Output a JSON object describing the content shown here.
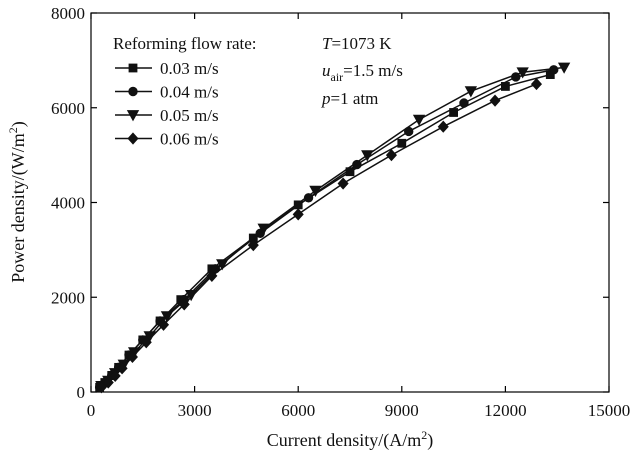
{
  "chart_data": {
    "type": "line",
    "title": "",
    "xlabel": "Current density/(A/m²)",
    "xlabel_parts": {
      "main": "Current density/(A/m",
      "sup": "2",
      "close": ")"
    },
    "ylabel": "Power density/(W/m²)",
    "ylabel_parts": {
      "main": "Power density/(W/m",
      "sup": "2",
      "close": ")"
    },
    "xlim": [
      0,
      15000
    ],
    "ylim": [
      0,
      8000
    ],
    "xticks": [
      0,
      3000,
      6000,
      9000,
      12000,
      15000
    ],
    "yticks": [
      0,
      2000,
      4000,
      6000,
      8000
    ],
    "xtick_labels": [
      "0",
      "3000",
      "6000",
      "9000",
      "12000",
      "15000"
    ],
    "ytick_labels": [
      "0",
      "2000",
      "4000",
      "6000",
      "8000"
    ],
    "grid": false,
    "legend": {
      "title": "Reforming flow rate:",
      "placement": "top-left"
    },
    "series": [
      {
        "name": "0.03 m/s",
        "marker": "square",
        "x": [
          250,
          400,
          600,
          800,
          1100,
          1500,
          2000,
          2600,
          3500,
          4700,
          6000,
          7500,
          9000,
          10500,
          12000,
          13300
        ],
        "y": [
          100,
          200,
          350,
          520,
          780,
          1100,
          1500,
          1950,
          2600,
          3250,
          3950,
          4650,
          5250,
          5900,
          6450,
          6700
        ]
      },
      {
        "name": "0.04 m/s",
        "marker": "circle",
        "x": [
          250,
          400,
          600,
          800,
          1100,
          1500,
          2000,
          2700,
          3600,
          4900,
          6300,
          7700,
          9200,
          10800,
          12300,
          13400
        ],
        "y": [
          100,
          200,
          350,
          520,
          780,
          1100,
          1500,
          1950,
          2600,
          3350,
          4100,
          4800,
          5500,
          6100,
          6650,
          6800
        ]
      },
      {
        "name": "0.05 m/s",
        "marker": "triangle-down",
        "x": [
          300,
          500,
          700,
          950,
          1250,
          1700,
          2200,
          2900,
          3800,
          5000,
          6500,
          8000,
          9500,
          11000,
          12500,
          13700
        ],
        "y": [
          130,
          240,
          400,
          580,
          840,
          1180,
          1600,
          2050,
          2700,
          3450,
          4250,
          5000,
          5750,
          6350,
          6750,
          6850
        ]
      },
      {
        "name": "0.06 m/s",
        "marker": "diamond",
        "x": [
          300,
          500,
          700,
          900,
          1200,
          1600,
          2100,
          2700,
          3500,
          4700,
          6000,
          7300,
          8700,
          10200,
          11700,
          12900
        ],
        "y": [
          100,
          200,
          340,
          500,
          740,
          1050,
          1420,
          1850,
          2450,
          3100,
          3750,
          4400,
          5000,
          5600,
          6150,
          6500
        ]
      }
    ],
    "annotations": {
      "temperature": {
        "sym": "T",
        "eq": "=1073 K"
      },
      "air_velocity": {
        "sym": "u",
        "sub": "air",
        "eq": "=1.5 m/s"
      },
      "pressure": {
        "sym": "p",
        "eq": "=1 atm"
      }
    }
  }
}
